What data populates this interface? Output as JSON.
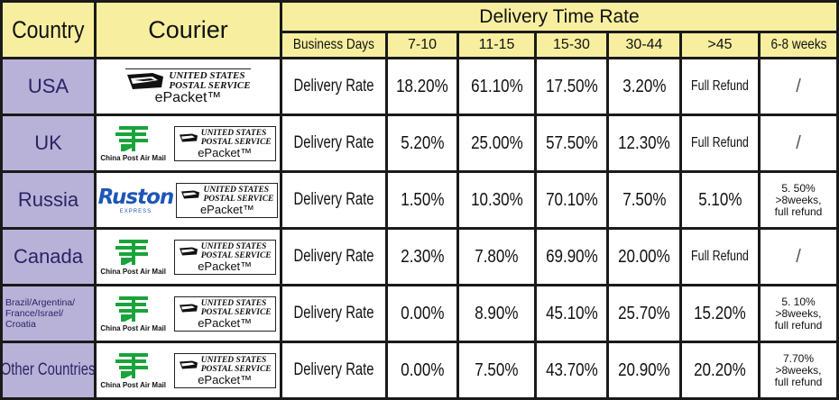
{
  "header": {
    "country": "Country",
    "courier": "Courier",
    "delivery_time_rate": "Delivery Time Rate",
    "business_days": "Business Days",
    "columns": [
      "7-10",
      "11-15",
      "15-30",
      "30-44",
      ">45",
      "6-8 weeks"
    ]
  },
  "logos": {
    "usps_line1": "UNITED STATES",
    "usps_line2": "POSTAL SERVICE",
    "epacket": "ePacket™",
    "china_post": "China Post Air Mail",
    "ruston": "Ruston",
    "ruston_sub": "EXPRESS"
  },
  "rows": [
    {
      "country": "USA",
      "label": "Delivery Rate",
      "values": [
        "18.20%",
        "61.10%",
        "17.50%",
        "3.20%",
        "Full Refund",
        "/"
      ]
    },
    {
      "country": "UK",
      "label": "Delivery Rate",
      "values": [
        "5.20%",
        "25.00%",
        "57.50%",
        "12.30%",
        "Full Refund",
        "/"
      ]
    },
    {
      "country": "Russia",
      "label": "Delivery Rate",
      "values": [
        "1.50%",
        "10.30%",
        "70.10%",
        "7.50%",
        "5.10%",
        "5. 50% >8weeks, full refund"
      ]
    },
    {
      "country": "Canada",
      "label": "Delivery Rate",
      "values": [
        "2.30%",
        "7.80%",
        "69.90%",
        "20.00%",
        "Full Refund",
        "/"
      ]
    },
    {
      "country": "Brazil/Argentina/ France/Israel/ Croatia",
      "label": "Delivery Rate",
      "values": [
        "0.00%",
        "8.90%",
        "45.10%",
        "25.70%",
        "15.20%",
        "5. 10% >8weeks, full refund"
      ]
    },
    {
      "country": "Other Countries",
      "label": "Delivery Rate",
      "values": [
        "0.00%",
        "7.50%",
        "43.70%",
        "20.90%",
        "20.20%",
        "7.70% >8weeks, full refund"
      ]
    }
  ],
  "colors": {
    "header_bg": "#f7ef9f",
    "country_bg": "#b8b2d8",
    "grid_lines": "#1a1a1a",
    "china_post_green": "#1aa33a",
    "ruston_blue": "#1d56b8"
  }
}
